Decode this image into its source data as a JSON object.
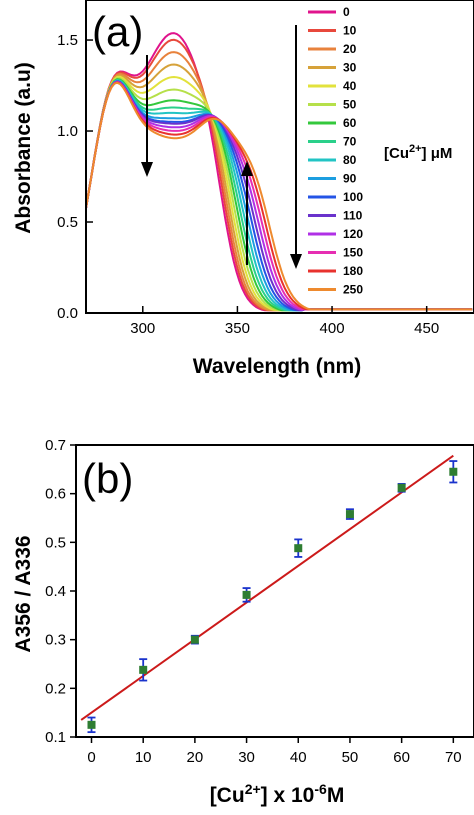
{
  "chart_data": [
    {
      "type": "line",
      "panel_label": "(a)",
      "xlabel": "Wavelength (nm)",
      "ylabel": "Absorbance (a.u)",
      "xlim": [
        270,
        475
      ],
      "ylim": [
        0.0,
        1.72
      ],
      "xticks": [
        300,
        350,
        400,
        450
      ],
      "yticks": [
        0.0,
        0.5,
        1.0,
        1.5
      ],
      "xtick_labels": [
        "300",
        "350",
        "400",
        "450"
      ],
      "ytick_labels": [
        "0.0",
        "0.5",
        "1.0",
        "1.5"
      ],
      "legend_position": "top-right",
      "legend_title": "[Cu2+] μM",
      "legend_title_parts": {
        "pre": "[Cu",
        "sup": "2+",
        "post": "] μM"
      },
      "series": [
        {
          "name": "0",
          "color": "#e0148c",
          "peak": 1.52
        },
        {
          "name": "10",
          "color": "#e8483c",
          "peak": 1.48
        },
        {
          "name": "20",
          "color": "#e8823c",
          "peak": 1.41
        },
        {
          "name": "30",
          "color": "#d6a23a",
          "peak": 1.34
        },
        {
          "name": "40",
          "color": "#e2e23c",
          "peak": 1.27
        },
        {
          "name": "50",
          "color": "#b6e04a",
          "peak": 1.2
        },
        {
          "name": "60",
          "color": "#34c83c",
          "peak": 1.14
        },
        {
          "name": "70",
          "color": "#2ad08a",
          "peak": 1.1
        },
        {
          "name": "80",
          "color": "#22c4c4",
          "peak": 1.07
        },
        {
          "name": "90",
          "color": "#1c9ee0",
          "peak": 1.04
        },
        {
          "name": "100",
          "color": "#2454e6",
          "peak": 1.02
        },
        {
          "name": "110",
          "color": "#6a32cc",
          "peak": 1.01
        },
        {
          "name": "120",
          "color": "#b030e6",
          "peak": 0.99
        },
        {
          "name": "150",
          "color": "#e62eb2",
          "peak": 0.97
        },
        {
          "name": "180",
          "color": "#e8322e",
          "peak": 0.95
        },
        {
          "name": "250",
          "color": "#ee8a2e",
          "peak": 0.93
        }
      ]
    },
    {
      "type": "scatter",
      "panel_label": "(b)",
      "xlabel": "[Cu2+] x 10-6M",
      "xlabel_parts": {
        "a": "[Cu",
        "sup1": "2+",
        "b": "] x 10",
        "sup2": "-6",
        "c": "M"
      },
      "ylabel": "A356 / A336",
      "xlim": [
        -3,
        74
      ],
      "ylim": [
        0.1,
        0.7
      ],
      "xticks": [
        0,
        10,
        20,
        30,
        40,
        50,
        60,
        70
      ],
      "yticks": [
        0.1,
        0.2,
        0.3,
        0.4,
        0.5,
        0.6,
        0.7
      ],
      "xtick_labels": [
        "0",
        "10",
        "20",
        "30",
        "40",
        "50",
        "60",
        "70"
      ],
      "ytick_labels": [
        "0.1",
        "0.2",
        "0.3",
        "0.4",
        "0.5",
        "0.6",
        "0.7"
      ],
      "x": [
        0,
        10,
        20,
        30,
        40,
        50,
        60,
        70
      ],
      "y": [
        0.125,
        0.238,
        0.3,
        0.392,
        0.488,
        0.558,
        0.612,
        0.645
      ],
      "yerr": [
        0.015,
        0.022,
        0.008,
        0.014,
        0.018,
        0.01,
        0.008,
        0.022
      ],
      "fit_line": {
        "x": [
          -2,
          70
        ],
        "y": [
          0.135,
          0.678
        ]
      },
      "marker_color": "#2e7d32",
      "errorbar_color": "#1a33cc",
      "fit_color": "#cc1a1a"
    }
  ]
}
